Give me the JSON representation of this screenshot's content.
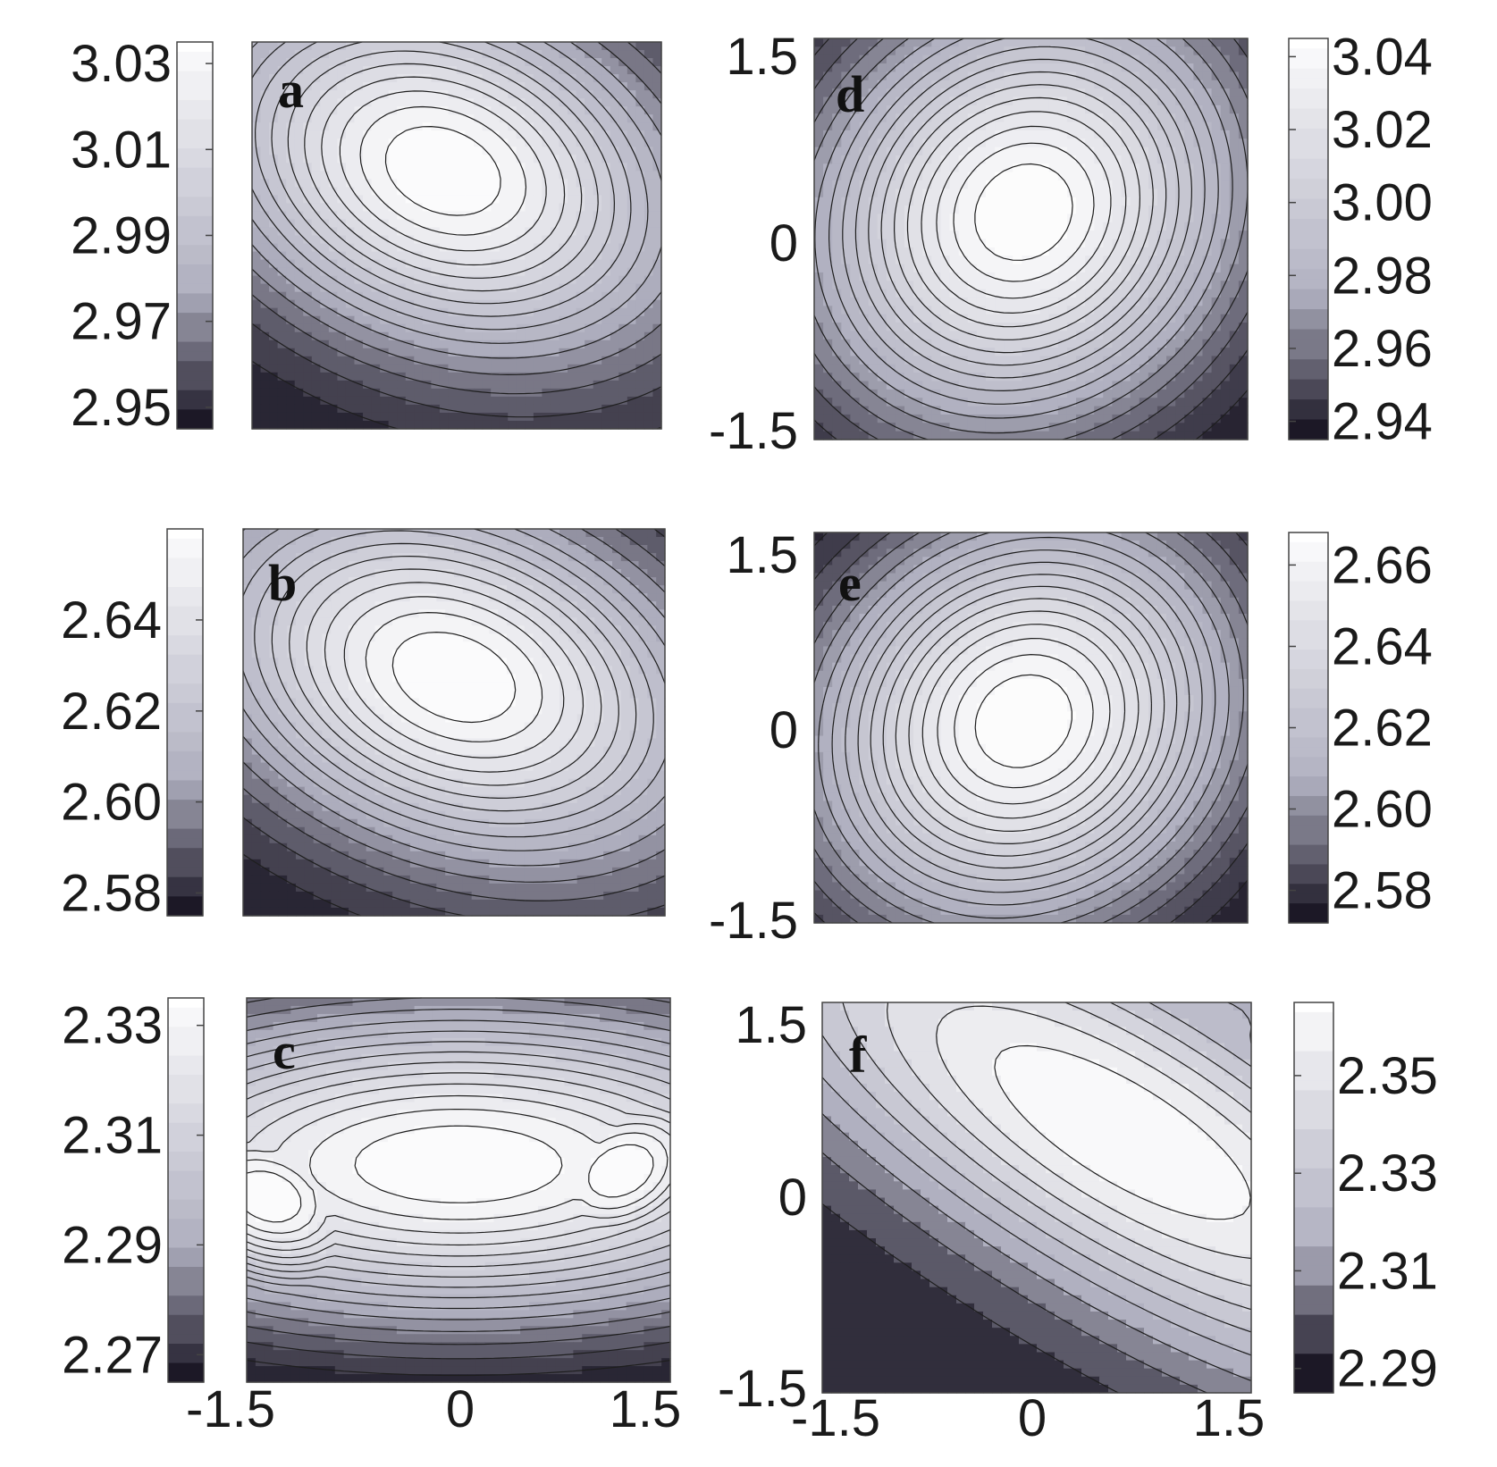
{
  "figure": {
    "colors": {
      "map_low": "#1c1826",
      "map_mid": "#b0b0c0",
      "map_high": "#ffffff",
      "contour_line": "#1e1e1e",
      "frame": "#444444"
    }
  },
  "chart_data": [
    {
      "type": "heatmap",
      "subtype": "filled-contour",
      "panel_label": "a",
      "title": "",
      "xlabel": "",
      "ylabel": "",
      "xlim": [
        -1.5,
        1.5
      ],
      "ylim": [
        -1.5,
        1.5
      ],
      "colorbar": {
        "ticks": [
          "3.03",
          "3.01",
          "2.99",
          "2.97",
          "2.95"
        ],
        "range": [
          2.945,
          3.035
        ],
        "placement": "left"
      },
      "peaks": [
        {
          "x": -0.1,
          "y": 0.5,
          "sx": 1.25,
          "sy": 0.9,
          "rot": -0.45,
          "amp": 1.0
        }
      ],
      "contour_levels": 16
    },
    {
      "type": "heatmap",
      "subtype": "filled-contour",
      "panel_label": "b",
      "title": "",
      "xlabel": "",
      "ylabel": "",
      "xlim": [
        -1.5,
        1.5
      ],
      "ylim": [
        -1.5,
        1.5
      ],
      "colorbar": {
        "ticks": [
          "2.64",
          "2.62",
          "2.60",
          "2.58"
        ],
        "range": [
          2.575,
          2.66
        ],
        "placement": "left"
      },
      "peaks": [
        {
          "x": 0.0,
          "y": 0.35,
          "sx": 1.3,
          "sy": 0.9,
          "rot": -0.45,
          "amp": 1.0
        }
      ],
      "contour_levels": 16
    },
    {
      "type": "heatmap",
      "subtype": "filled-contour",
      "panel_label": "c",
      "title": "",
      "xlabel": "",
      "ylabel": "",
      "xlim": [
        -1.5,
        1.5
      ],
      "ylim": [
        -1.5,
        1.5
      ],
      "xticks": [
        "-1.5",
        "0",
        "1.5"
      ],
      "colorbar": {
        "ticks": [
          "2.33",
          "2.31",
          "2.29",
          "2.27"
        ],
        "range": [
          2.265,
          2.335
        ],
        "placement": "left"
      },
      "peaks": [
        {
          "x": -1.35,
          "y": -0.05,
          "sx": 0.75,
          "sy": 0.55,
          "rot": -0.5,
          "amp": 0.55
        },
        {
          "x": 1.15,
          "y": 0.15,
          "sx": 0.75,
          "sy": 0.55,
          "rot": 0.6,
          "amp": 0.55
        },
        {
          "x": 0.0,
          "y": 0.2,
          "sx": 2.2,
          "sy": 0.9,
          "rot": 0.0,
          "amp": 0.55
        }
      ],
      "contour_levels": 16
    },
    {
      "type": "heatmap",
      "subtype": "filled-contour",
      "panel_label": "d",
      "title": "",
      "xlabel": "",
      "ylabel": "",
      "xlim": [
        -1.5,
        1.5
      ],
      "ylim": [
        -1.5,
        1.5
      ],
      "yticks": [
        "1.5",
        "0",
        "-1.5"
      ],
      "colorbar": {
        "ticks": [
          "3.04",
          "3.02",
          "3.00",
          "2.98",
          "2.96",
          "2.94"
        ],
        "range": [
          2.935,
          3.045
        ],
        "placement": "right"
      },
      "peaks": [
        {
          "x": -0.05,
          "y": 0.2,
          "sx": 1.0,
          "sy": 1.15,
          "rot": -0.55,
          "amp": 1.0
        }
      ],
      "contour_levels": 18
    },
    {
      "type": "heatmap",
      "subtype": "filled-contour",
      "panel_label": "e",
      "title": "",
      "xlabel": "",
      "ylabel": "",
      "xlim": [
        -1.5,
        1.5
      ],
      "ylim": [
        -1.5,
        1.5
      ],
      "yticks": [
        "1.5",
        "0",
        "-1.5"
      ],
      "colorbar": {
        "ticks": [
          "2.66",
          "2.64",
          "2.62",
          "2.60",
          "2.58"
        ],
        "range": [
          2.572,
          2.668
        ],
        "placement": "right"
      },
      "peaks": [
        {
          "x": -0.05,
          "y": 0.05,
          "sx": 1.0,
          "sy": 1.15,
          "rot": -0.55,
          "amp": 1.0
        }
      ],
      "contour_levels": 18
    },
    {
      "type": "heatmap",
      "subtype": "filled-contour",
      "panel_label": "f",
      "title": "",
      "xlabel": "",
      "ylabel": "",
      "xlim": [
        -1.5,
        1.5
      ],
      "ylim": [
        -1.5,
        1.5
      ],
      "xticks": [
        "-1.5",
        "0",
        "1.5"
      ],
      "yticks": [
        "1.5",
        "0",
        "-1.5"
      ],
      "colorbar": {
        "ticks": [
          "2.35",
          "2.33",
          "2.31",
          "2.29"
        ],
        "range": [
          2.285,
          2.365
        ],
        "placement": "right"
      },
      "peaks": [
        {
          "x": 0.6,
          "y": 0.5,
          "sx": 2.3,
          "sy": 0.8,
          "rot": -0.6,
          "amp": 0.55
        },
        {
          "x": 1.2,
          "y": 1.3,
          "sx": 0.6,
          "sy": 0.45,
          "rot": 0.0,
          "amp": 0.25
        }
      ],
      "contour_levels": 10
    }
  ]
}
